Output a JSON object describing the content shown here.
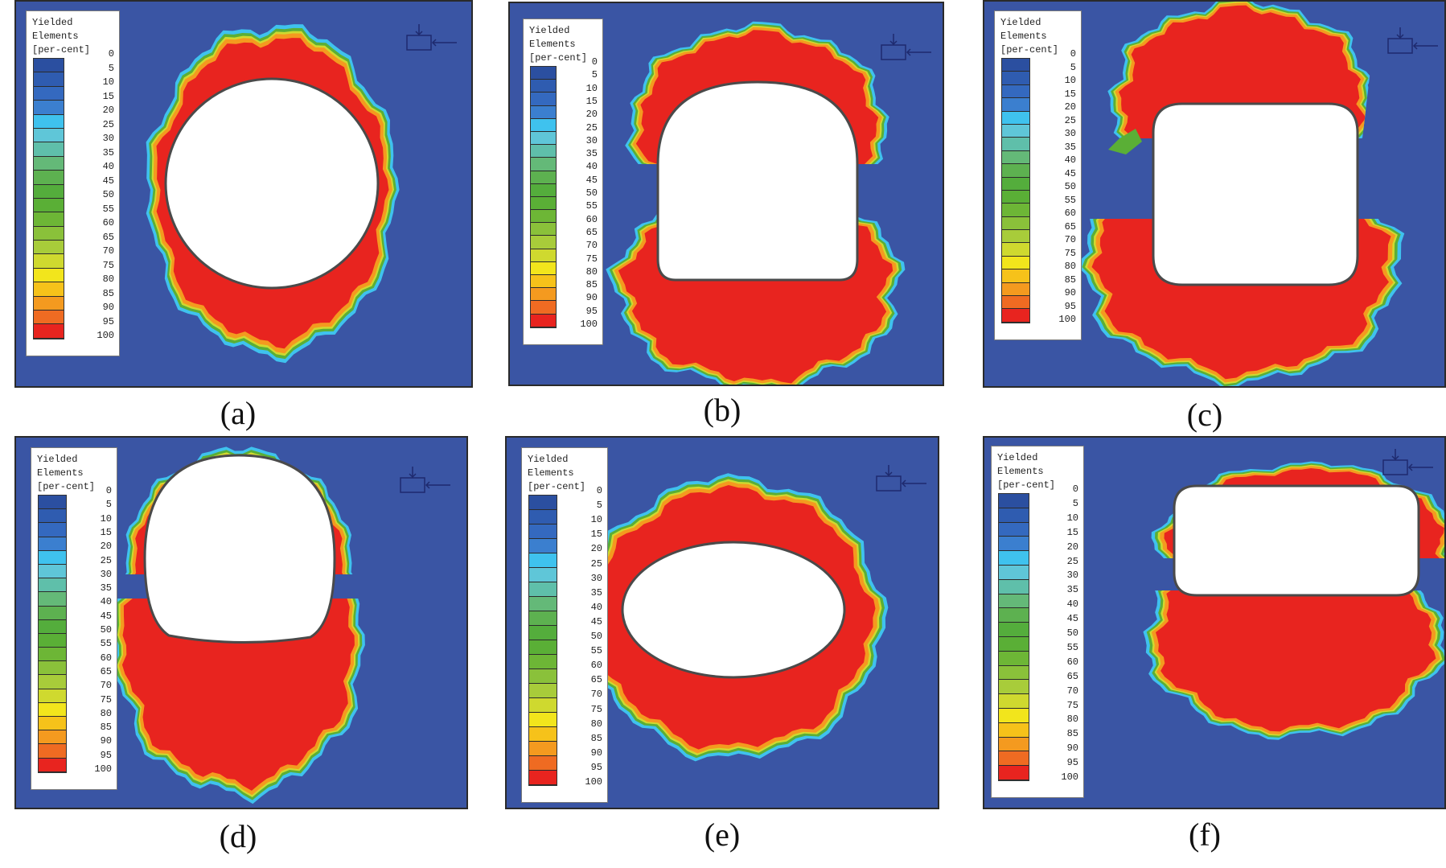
{
  "legend": {
    "line1": "Yielded",
    "line2": "Elements",
    "line3": "[per-cent]",
    "ticks": [
      "0",
      "5",
      "10",
      "15",
      "20",
      "25",
      "30",
      "35",
      "40",
      "45",
      "50",
      "55",
      "60",
      "65",
      "70",
      "75",
      "80",
      "85",
      "90",
      "95",
      "100"
    ],
    "colors": [
      "#2b4fa0",
      "#2f5cb0",
      "#3469bf",
      "#3b7fcf",
      "#3fc2ee",
      "#5fc6d8",
      "#5fbfaa",
      "#64b978",
      "#5db150",
      "#54ad3c",
      "#5aaf36",
      "#6db636",
      "#8ac13a",
      "#a8cc3a",
      "#cfd92f",
      "#f2e51c",
      "#f6c21a",
      "#f49a1f",
      "#ef6b22",
      "#e8241f"
    ]
  },
  "colors": {
    "background": "#3a55a4",
    "yield100": "#e8241f",
    "fringe_orange": "#f49a1f",
    "fringe_yellow": "#cfd92f",
    "fringe_green": "#5aaf36",
    "fringe_cyan": "#3fc2ee",
    "opening": "#ffffff",
    "opening_edge": "#4a4a4a"
  },
  "icons": {
    "load": "load-arrow-icon"
  },
  "panels": [
    {
      "id": "a",
      "caption": "(a)",
      "shape": "circle"
    },
    {
      "id": "b",
      "caption": "(b)",
      "shape": "horseshoe"
    },
    {
      "id": "c",
      "caption": "(c)",
      "shape": "rounded-rectangle"
    },
    {
      "id": "d",
      "caption": "(d)",
      "shape": "circular-with-flat-invert"
    },
    {
      "id": "e",
      "caption": "(e)",
      "shape": "ellipse"
    },
    {
      "id": "f",
      "caption": "(f)",
      "shape": "wide-rounded-rectangle"
    }
  ]
}
